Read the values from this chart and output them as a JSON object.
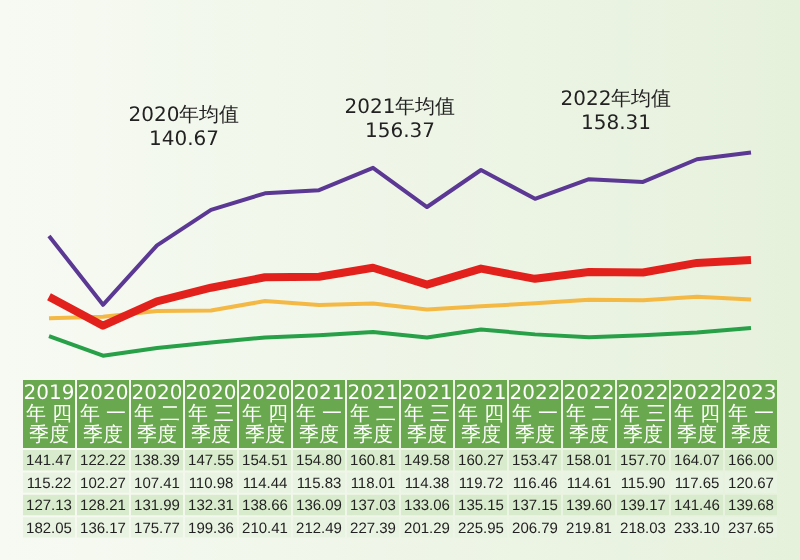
{
  "chart_data": {
    "type": "line",
    "categories": [
      "2019年 四季度",
      "2020年 一季度",
      "2020年 二季度",
      "2020年 三季度",
      "2020年 四季度",
      "2021年 一季度",
      "2021年 二季度",
      "2021年 三季度",
      "2021年 四季度",
      "2022年 一季度",
      "2022年 二季度",
      "2022年 三季度",
      "2022年 四季度",
      "2023年 一季度"
    ],
    "series": [
      {
        "color": "#e3211c",
        "values": [
          141.47,
          122.22,
          138.39,
          147.55,
          154.51,
          154.8,
          160.81,
          149.58,
          160.27,
          153.47,
          158.01,
          157.7,
          164.07,
          166.0
        ],
        "value_labels": [
          "141.47",
          "122.22",
          "138.39",
          "147.55",
          "154.51",
          "154.80",
          "160.81",
          "149.58",
          "160.27",
          "153.47",
          "158.01",
          "157.70",
          "164.07",
          "166.00"
        ]
      },
      {
        "color": "#27a048",
        "values": [
          115.22,
          102.27,
          107.41,
          110.98,
          114.44,
          115.83,
          118.01,
          114.38,
          119.72,
          116.46,
          114.61,
          115.9,
          117.65,
          120.67
        ],
        "value_labels": [
          "115.22",
          "102.27",
          "107.41",
          "110.98",
          "114.44",
          "115.83",
          "118.01",
          "114.38",
          "119.72",
          "116.46",
          "114.61",
          "115.90",
          "117.65",
          "120.67"
        ]
      },
      {
        "color": "#f4b944",
        "values": [
          127.13,
          128.21,
          131.99,
          132.31,
          138.66,
          136.09,
          137.03,
          133.06,
          135.15,
          137.15,
          139.6,
          139.17,
          141.46,
          139.68
        ],
        "value_labels": [
          "127.13",
          "128.21",
          "131.99",
          "132.31",
          "138.66",
          "136.09",
          "137.03",
          "133.06",
          "135.15",
          "137.15",
          "139.60",
          "139.17",
          "141.46",
          "139.68"
        ]
      },
      {
        "color": "#5b3893",
        "values": [
          182.05,
          136.17,
          175.77,
          199.36,
          210.41,
          212.49,
          227.39,
          201.29,
          225.95,
          206.79,
          219.81,
          218.03,
          233.1,
          237.65
        ],
        "value_labels": [
          "182.05",
          "136.17",
          "175.77",
          "199.36",
          "210.41",
          "212.49",
          "227.39",
          "201.29",
          "225.95",
          "206.79",
          "219.81",
          "218.03",
          "233.10",
          "237.65"
        ]
      }
    ],
    "annotations": [
      "2020年均值 140.67",
      "2021年均值 156.37",
      "2022年均值 158.31"
    ],
    "legend": false,
    "grid": false,
    "marker": "none",
    "line_style": "solid"
  }
}
